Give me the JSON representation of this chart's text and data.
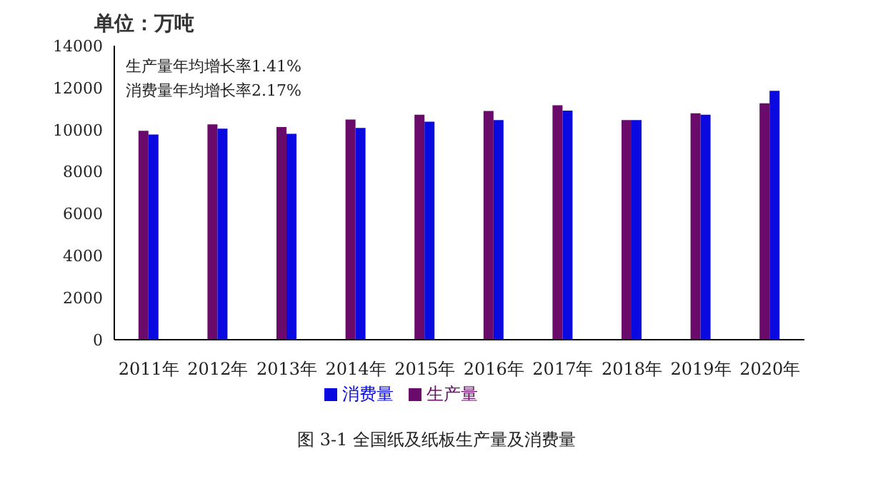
{
  "chart_data": {
    "type": "bar",
    "ylabel": "单位：万吨",
    "annotations": [
      "生产量年均增长率1.41%",
      "消费量年均增长率2.17%",
      "图 3-1  全国纸及纸板生产量及消费量"
    ],
    "categories": [
      "2011年",
      "2012年",
      "2013年",
      "2014年",
      "2015年",
      "2016年",
      "2017年",
      "2018年",
      "2019年",
      "2020年"
    ],
    "series": [
      {
        "name": "生产量",
        "color": "#6a0a6a",
        "values": [
          9950,
          10250,
          10130,
          10480,
          10710,
          10890,
          11160,
          10460,
          10780,
          11260
        ]
      },
      {
        "name": "消费量",
        "color": "#0a0ae0",
        "values": [
          9770,
          10050,
          9800,
          10080,
          10380,
          10460,
          10910,
          10460,
          10710,
          11850
        ]
      }
    ],
    "ylim": [
      0,
      14000
    ],
    "yticks": [
      0,
      2000,
      4000,
      6000,
      8000,
      10000,
      12000,
      14000
    ],
    "grid": false,
    "legend": "bottom"
  }
}
